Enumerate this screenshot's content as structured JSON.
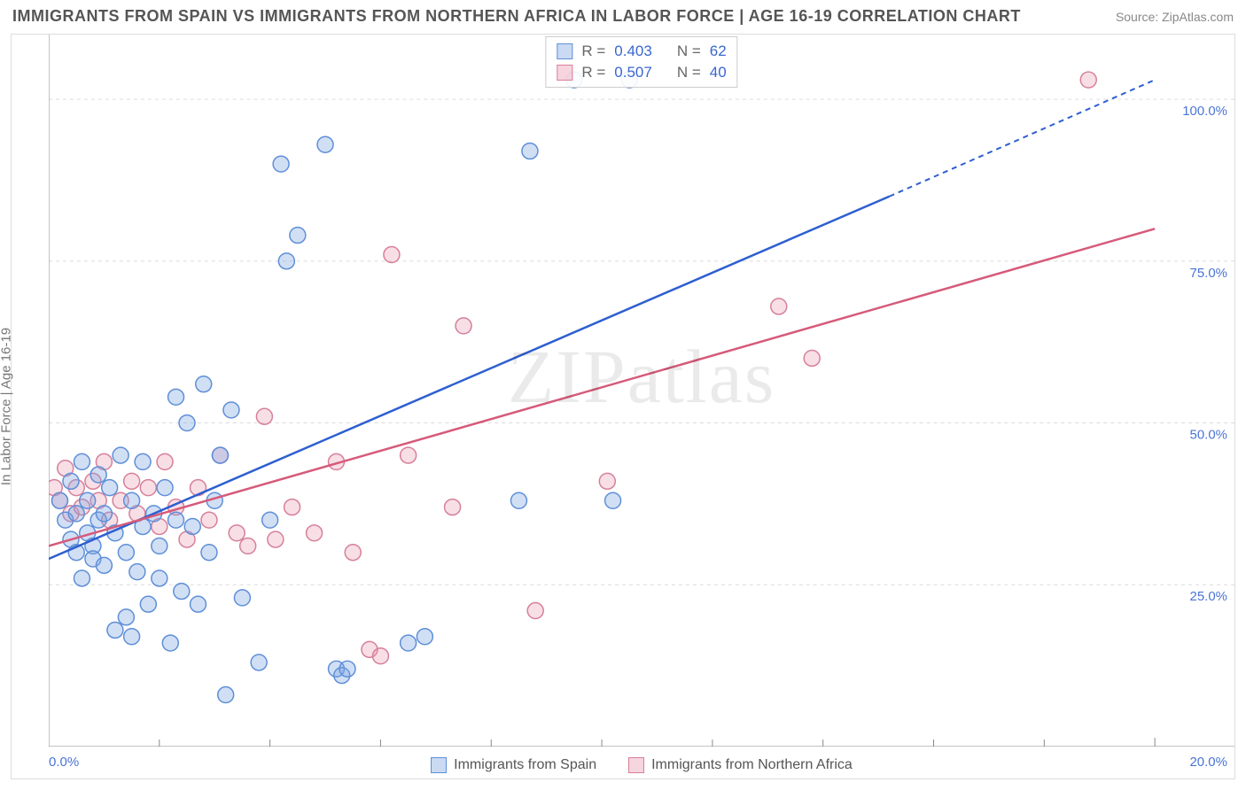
{
  "title": "IMMIGRANTS FROM SPAIN VS IMMIGRANTS FROM NORTHERN AFRICA IN LABOR FORCE | AGE 16-19 CORRELATION CHART",
  "source": "Source: ZipAtlas.com",
  "watermark": "ZIPatlas",
  "y_axis_label": "In Labor Force | Age 16-19",
  "chart": {
    "type": "scatter",
    "xlim": [
      0,
      20
    ],
    "ylim": [
      0,
      110
    ],
    "x_ticks": [
      0,
      20
    ],
    "x_tick_labels": [
      "0.0%",
      "20.0%"
    ],
    "x_minor_ticks": [
      2,
      4,
      6,
      8,
      10,
      12,
      14,
      16,
      18
    ],
    "y_gridlines": [
      25,
      50,
      75,
      100
    ],
    "y_grid_labels": [
      "25.0%",
      "50.0%",
      "75.0%",
      "100.0%"
    ],
    "background_color": "#ffffff",
    "grid_color": "#dcdcdc",
    "series": {
      "blue": {
        "label": "Immigrants from Spain",
        "color_fill": "rgba(122,162,226,0.35)",
        "color_stroke": "#5e8fd8",
        "trend_color": "#2e5fd0",
        "R": 0.403,
        "N": 62,
        "trend": {
          "x1": 0,
          "y1": 29,
          "x2": 15.2,
          "y2": 85,
          "dash_from_x": 15.2,
          "dash_to_x": 20,
          "dash_to_y": 103
        },
        "marker_radius": 9,
        "points": [
          [
            0.2,
            38
          ],
          [
            0.3,
            35
          ],
          [
            0.4,
            32
          ],
          [
            0.4,
            41
          ],
          [
            0.5,
            36
          ],
          [
            0.5,
            30
          ],
          [
            0.6,
            44
          ],
          [
            0.6,
            26
          ],
          [
            0.7,
            33
          ],
          [
            0.7,
            38
          ],
          [
            0.8,
            31
          ],
          [
            0.8,
            29
          ],
          [
            0.9,
            35
          ],
          [
            0.9,
            42
          ],
          [
            1.0,
            28
          ],
          [
            1.0,
            36
          ],
          [
            1.1,
            40
          ],
          [
            1.2,
            18
          ],
          [
            1.2,
            33
          ],
          [
            1.3,
            45
          ],
          [
            1.4,
            30
          ],
          [
            1.4,
            20
          ],
          [
            1.5,
            38
          ],
          [
            1.5,
            17
          ],
          [
            1.6,
            27
          ],
          [
            1.7,
            44
          ],
          [
            1.7,
            34
          ],
          [
            1.8,
            22
          ],
          [
            1.9,
            36
          ],
          [
            2.0,
            26
          ],
          [
            2.0,
            31
          ],
          [
            2.1,
            40
          ],
          [
            2.2,
            16
          ],
          [
            2.3,
            54
          ],
          [
            2.3,
            35
          ],
          [
            2.4,
            24
          ],
          [
            2.5,
            50
          ],
          [
            2.6,
            34
          ],
          [
            2.7,
            22
          ],
          [
            2.8,
            56
          ],
          [
            2.9,
            30
          ],
          [
            3.0,
            38
          ],
          [
            3.1,
            45
          ],
          [
            3.2,
            8
          ],
          [
            3.3,
            52
          ],
          [
            3.5,
            23
          ],
          [
            3.8,
            13
          ],
          [
            4.0,
            35
          ],
          [
            4.2,
            90
          ],
          [
            4.3,
            75
          ],
          [
            4.5,
            79
          ],
          [
            5.0,
            93
          ],
          [
            5.2,
            12
          ],
          [
            5.3,
            11
          ],
          [
            5.4,
            12
          ],
          [
            6.5,
            16
          ],
          [
            6.8,
            17
          ],
          [
            8.5,
            38
          ],
          [
            8.7,
            92
          ],
          [
            9.5,
            103
          ],
          [
            10.5,
            103
          ],
          [
            10.2,
            38
          ]
        ]
      },
      "pink": {
        "label": "Immigrants from Northern Africa",
        "color_fill": "rgba(232,150,172,0.30)",
        "color_stroke": "#d77f9a",
        "trend_color": "#d65a7a",
        "R": 0.507,
        "N": 40,
        "trend": {
          "x1": 0,
          "y1": 31,
          "x2": 20,
          "y2": 80
        },
        "marker_radius": 9,
        "points": [
          [
            0.1,
            40
          ],
          [
            0.2,
            38
          ],
          [
            0.3,
            43
          ],
          [
            0.4,
            36
          ],
          [
            0.5,
            40
          ],
          [
            0.6,
            37
          ],
          [
            0.8,
            41
          ],
          [
            0.9,
            38
          ],
          [
            1.0,
            44
          ],
          [
            1.1,
            35
          ],
          [
            1.3,
            38
          ],
          [
            1.5,
            41
          ],
          [
            1.6,
            36
          ],
          [
            1.8,
            40
          ],
          [
            2.0,
            34
          ],
          [
            2.1,
            44
          ],
          [
            2.3,
            37
          ],
          [
            2.5,
            32
          ],
          [
            2.7,
            40
          ],
          [
            2.9,
            35
          ],
          [
            3.1,
            45
          ],
          [
            3.4,
            33
          ],
          [
            3.6,
            31
          ],
          [
            3.9,
            51
          ],
          [
            4.1,
            32
          ],
          [
            4.4,
            37
          ],
          [
            4.8,
            33
          ],
          [
            5.2,
            44
          ],
          [
            5.5,
            30
          ],
          [
            5.8,
            15
          ],
          [
            6.0,
            14
          ],
          [
            6.2,
            76
          ],
          [
            6.5,
            45
          ],
          [
            7.3,
            37
          ],
          [
            7.5,
            65
          ],
          [
            8.8,
            21
          ],
          [
            10.1,
            41
          ],
          [
            13.2,
            68
          ],
          [
            13.8,
            60
          ],
          [
            18.8,
            103
          ]
        ]
      }
    }
  },
  "stats_box": {
    "rows": [
      {
        "swatch": "blue",
        "R_label": "R =",
        "R": "0.403",
        "N_label": "N =",
        "N": "62"
      },
      {
        "swatch": "pink",
        "R_label": "R =",
        "R": "0.507",
        "N_label": "N =",
        "N": "40"
      }
    ]
  }
}
